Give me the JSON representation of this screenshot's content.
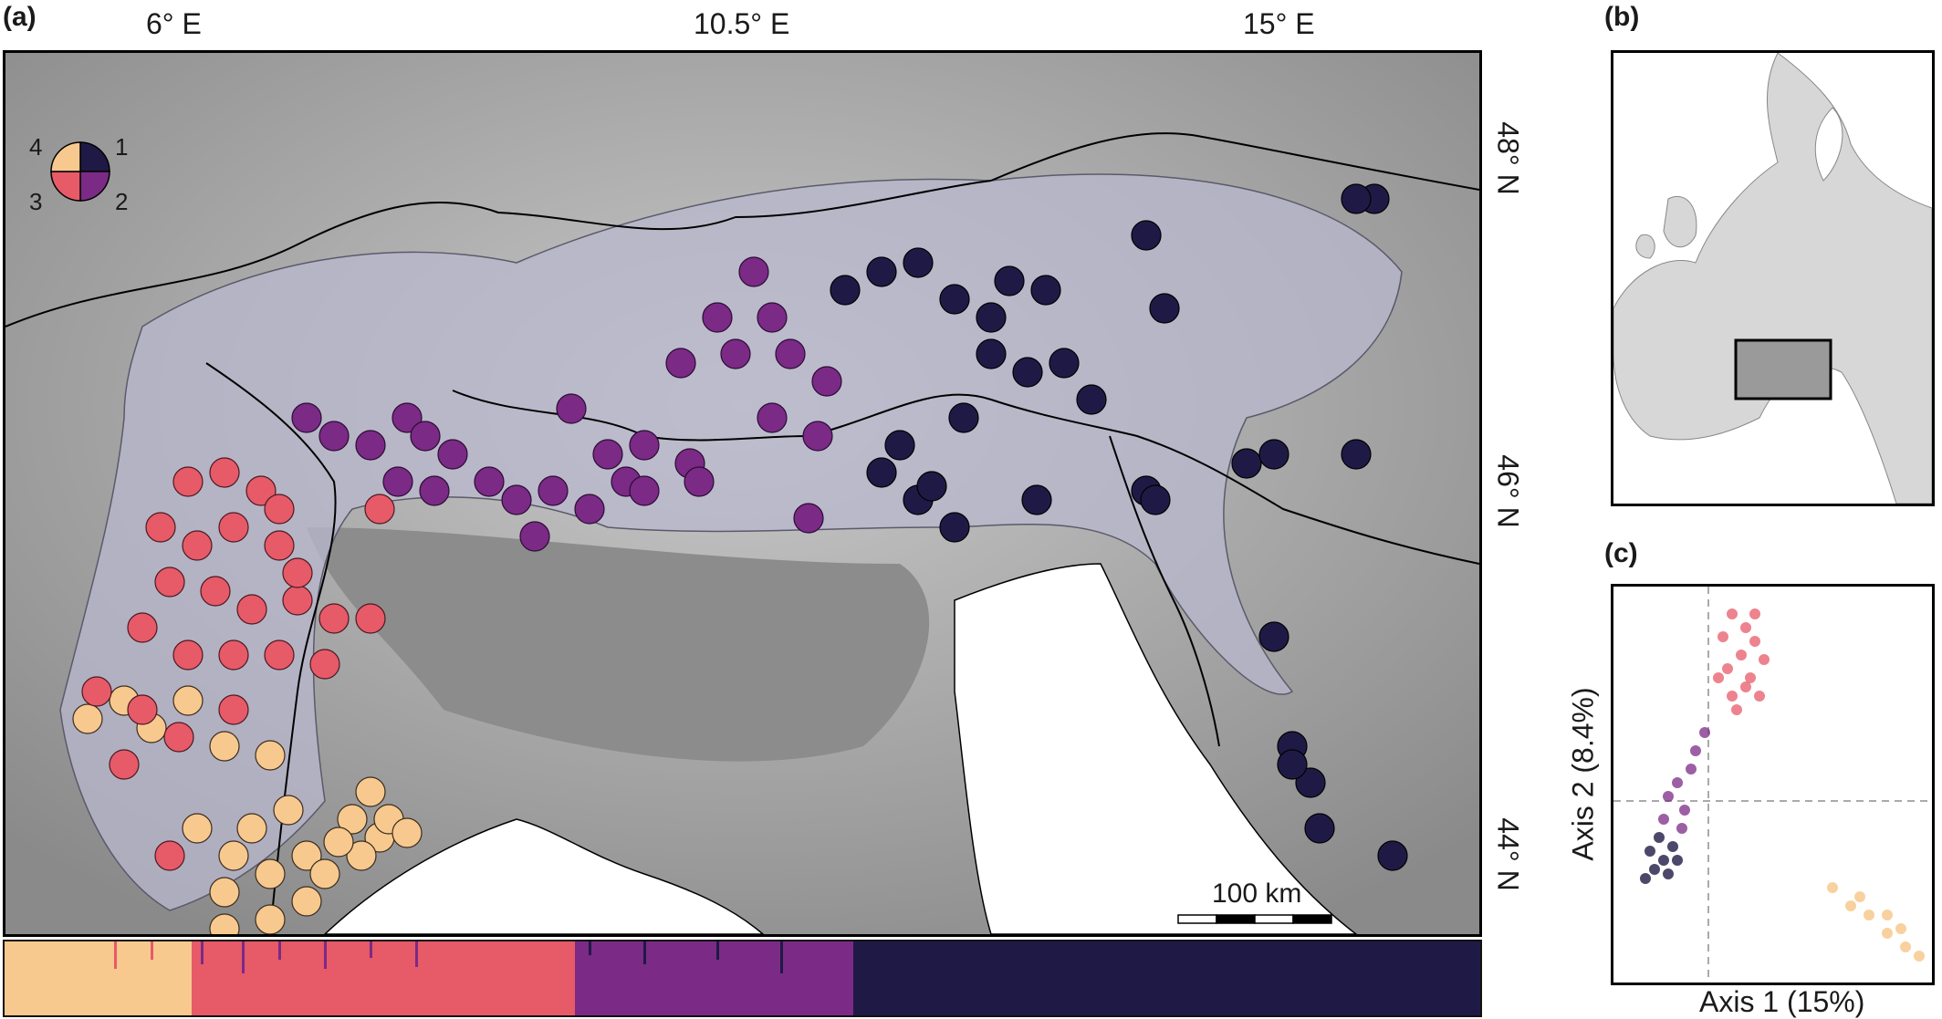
{
  "panels": {
    "a": "(a)",
    "b": "(b)",
    "c": "(c)"
  },
  "map": {
    "lon_ticks": [
      "6° E",
      "10.5° E",
      "15° E"
    ],
    "lat_ticks": [
      "48° N",
      "46° N",
      "44° N"
    ],
    "scale_bar": "100 km",
    "legend_numbers": [
      "4",
      "1",
      "3",
      "2"
    ],
    "cluster_colors": {
      "1": "#1f1a45",
      "2": "#7b2a86",
      "3": "#e75a68",
      "4": "#f7c98e"
    }
  },
  "pca": {
    "xlabel": "Axis 1 (15%)",
    "ylabel": "Axis 2 (8.4%)"
  }
}
